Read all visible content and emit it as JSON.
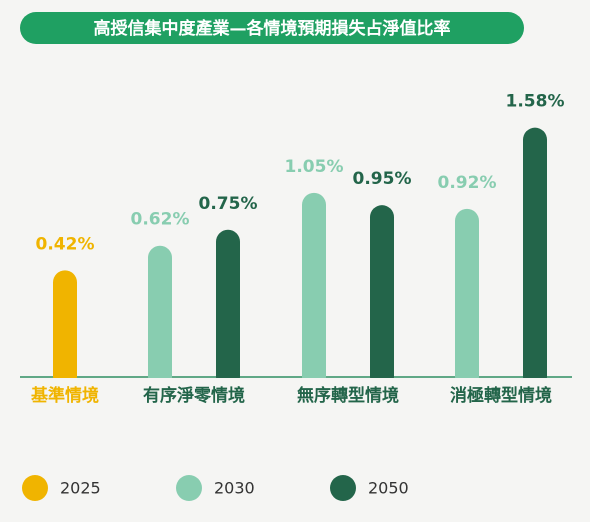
{
  "chart_data": {
    "type": "bar",
    "title": "高授信集中度產業—各情境預期損失占淨值比率",
    "categories": [
      "基準情境",
      "有序淨零情境",
      "無序轉型情境",
      "消極轉型情境"
    ],
    "series": [
      {
        "name": "2025",
        "color": "#f0b400",
        "values": [
          0.42,
          null,
          null,
          null
        ],
        "value_labels": [
          "0.42%",
          null,
          null,
          null
        ]
      },
      {
        "name": "2030",
        "color": "#88cdb0",
        "values": [
          null,
          0.62,
          1.05,
          0.92
        ],
        "value_labels": [
          null,
          "0.62%",
          "1.05%",
          "0.92%"
        ]
      },
      {
        "name": "2050",
        "color": "#23654a",
        "values": [
          null,
          0.75,
          0.95,
          1.58
        ],
        "value_labels": [
          null,
          "0.75%",
          "0.95%",
          "1.58%"
        ]
      }
    ],
    "category_colors": [
      "#f0b400",
      "#23654a",
      "#23654a",
      "#23654a"
    ],
    "legend": "bottom"
  }
}
